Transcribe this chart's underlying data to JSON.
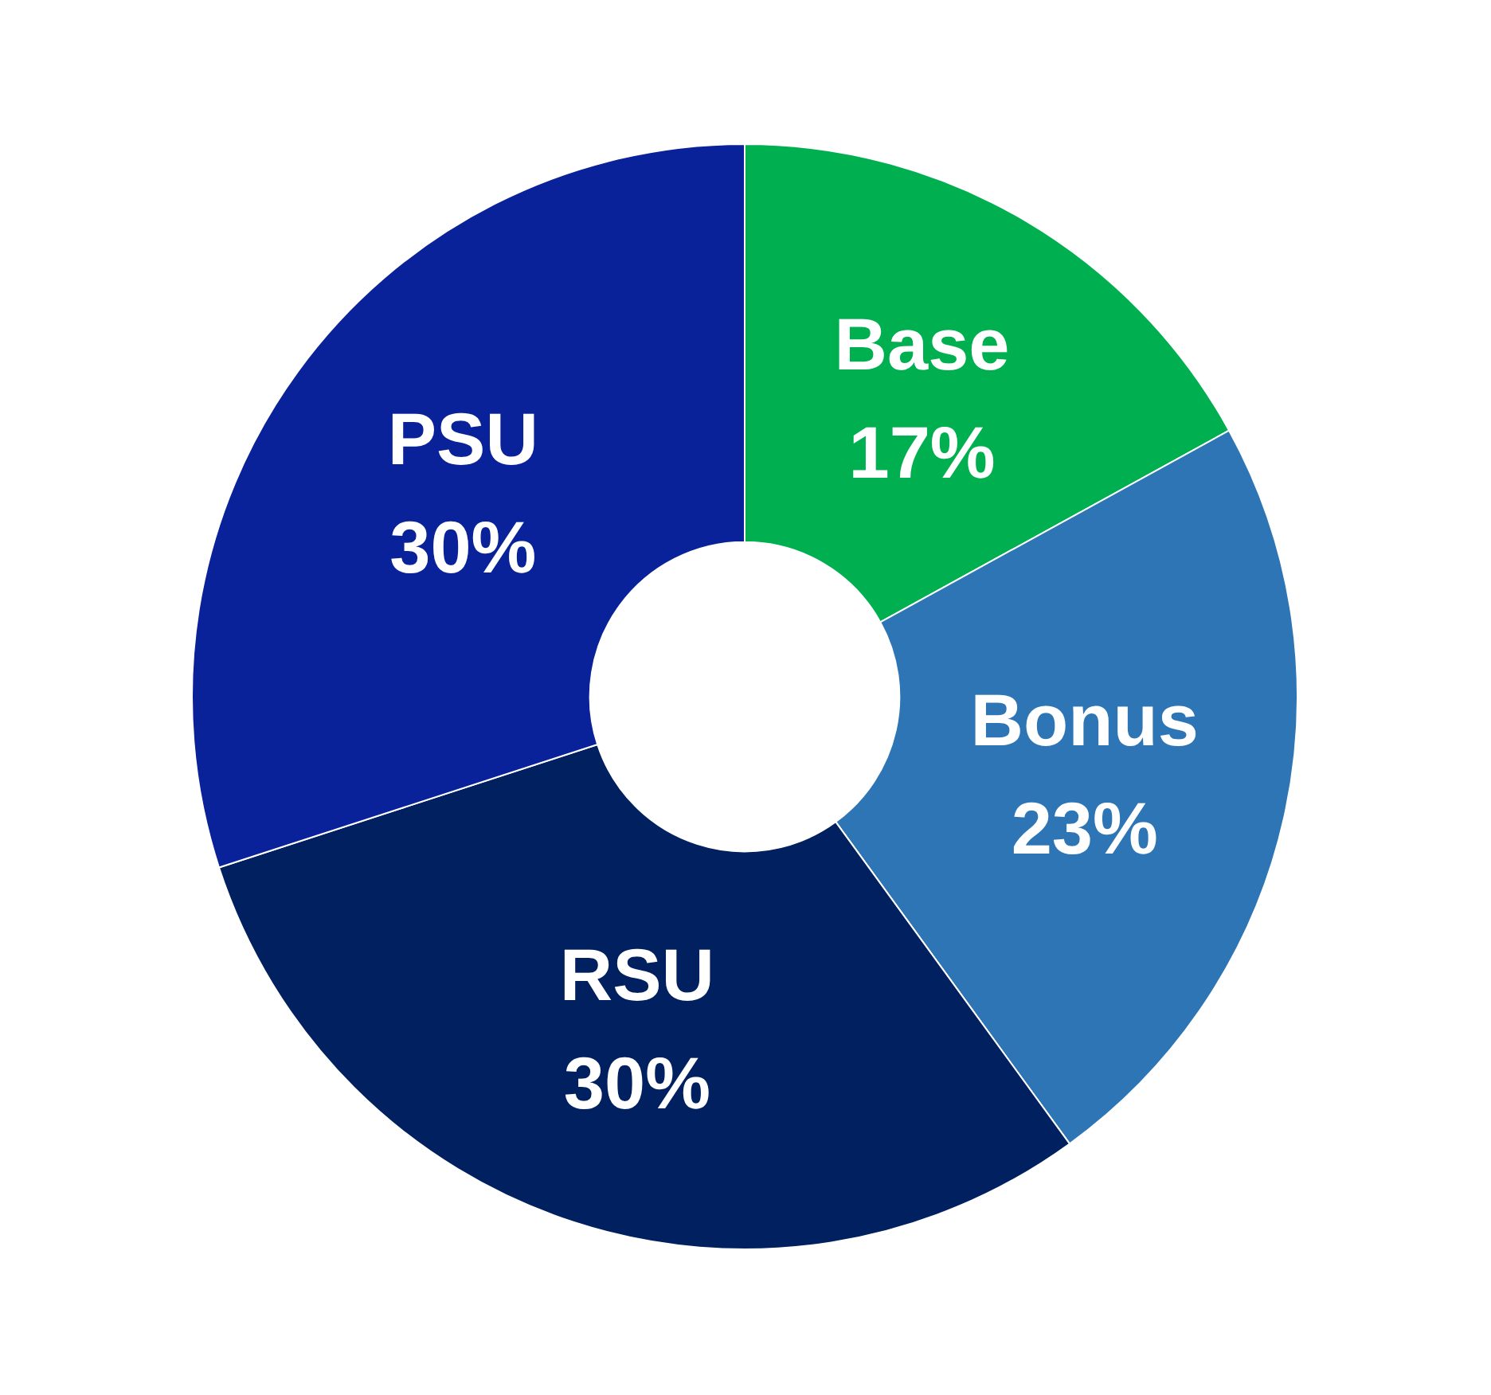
{
  "chart_data": {
    "type": "donut",
    "categories": [
      "Base",
      "Bonus",
      "RSU",
      "PSU"
    ],
    "values": [
      17,
      23,
      30,
      30
    ],
    "colors": [
      "#00b050",
      "#2e75b6",
      "#002060",
      "#0a2299"
    ],
    "value_labels": [
      "17%",
      "23%",
      "30%",
      "30%"
    ],
    "legend": false
  }
}
